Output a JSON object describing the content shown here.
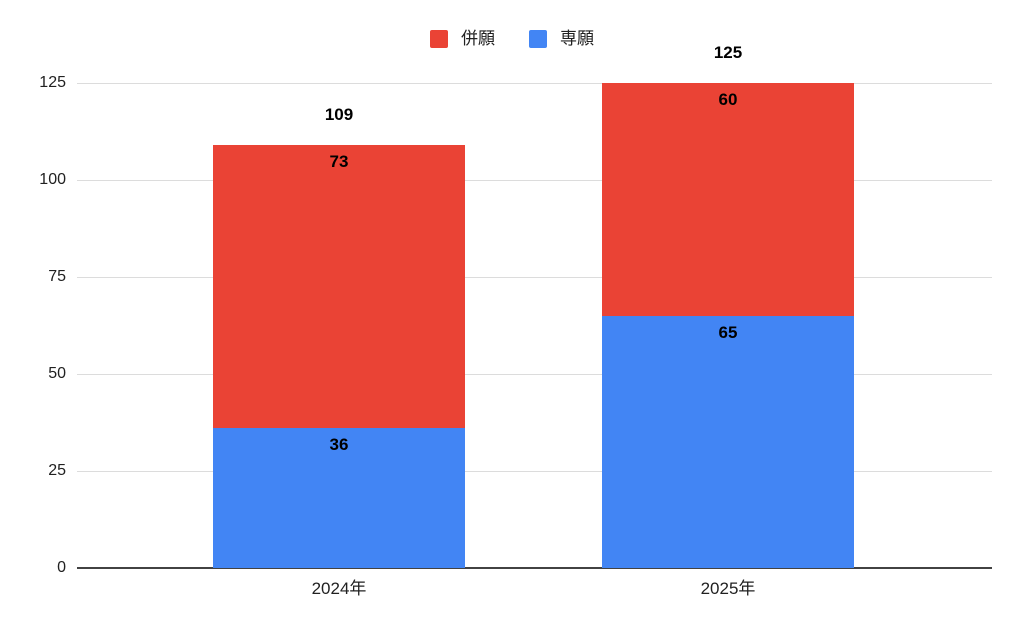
{
  "chart_data": {
    "type": "bar",
    "stacked": true,
    "orientation": "vertical",
    "title": "",
    "xlabel": "",
    "ylabel": "",
    "categories": [
      "2024年",
      "2025年"
    ],
    "series": [
      {
        "name": "併願",
        "color": "#ea4335",
        "values": [
          73,
          60
        ],
        "stack_position": "top"
      },
      {
        "name": "専願",
        "color": "#4285f4",
        "values": [
          36,
          65
        ],
        "stack_position": "bottom"
      }
    ],
    "totals": [
      109,
      125
    ],
    "ylim": [
      0,
      125
    ],
    "yticks": [
      0,
      25,
      50,
      75,
      100,
      125
    ],
    "grid": true,
    "gridline_color": "#dcdcdc",
    "axis_line_color": "#424242",
    "legend_position": "top",
    "background_color": "#ffffff",
    "data_label_color": "#000000"
  },
  "legend": {
    "items": [
      {
        "label": "併願",
        "color": "#ea4335"
      },
      {
        "label": "専願",
        "color": "#4285f4"
      }
    ]
  }
}
